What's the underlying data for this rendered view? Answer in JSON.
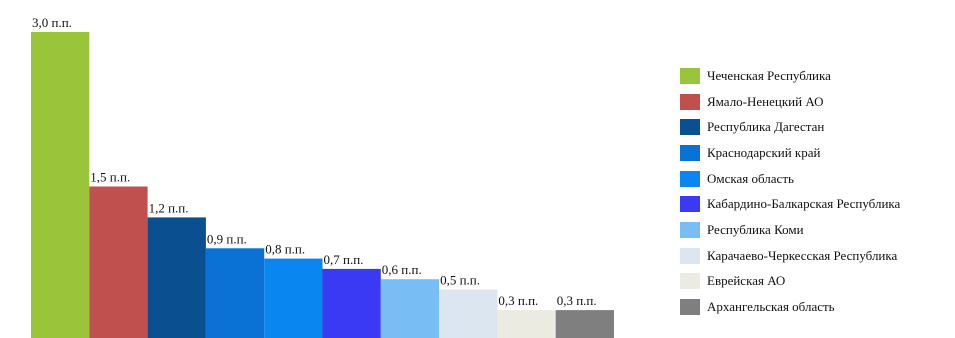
{
  "chart_data": {
    "type": "bar",
    "title": "",
    "xlabel": "",
    "ylabel": "",
    "ylim": [
      0,
      3.0
    ],
    "grid": false,
    "legend_position": "right",
    "categories": [
      "Чеченская Республика",
      "Ямало-Ненецкий АО",
      "Республика Дагестан",
      "Краснодарский край",
      "Омская область",
      "Кабардино-Балкарская Республика",
      "Республика Коми",
      "Карачаево-Черкесская Республика",
      "Еврейская АО",
      "Архангельская область"
    ],
    "values": [
      3.0,
      1.5,
      1.2,
      0.9,
      0.8,
      0.7,
      0.6,
      0.5,
      0.3,
      0.3
    ],
    "data_labels": [
      "3,0 п.п.",
      "1,5 п.п.",
      "1,2 п.п.",
      "0,9 п.п.",
      "0,8 п.п.",
      "0,7 п.п.",
      "0,6 п.п.",
      "0,5 п.п.",
      "0,3 п.п.",
      "0,3 п.п."
    ],
    "colors": [
      "#9ac43a",
      "#c0504d",
      "#0a4f8f",
      "#0a72d4",
      "#0a86f0",
      "#3a3af5",
      "#79bdf5",
      "#dce6f0",
      "#ecebe1",
      "#7f7f7f"
    ]
  }
}
